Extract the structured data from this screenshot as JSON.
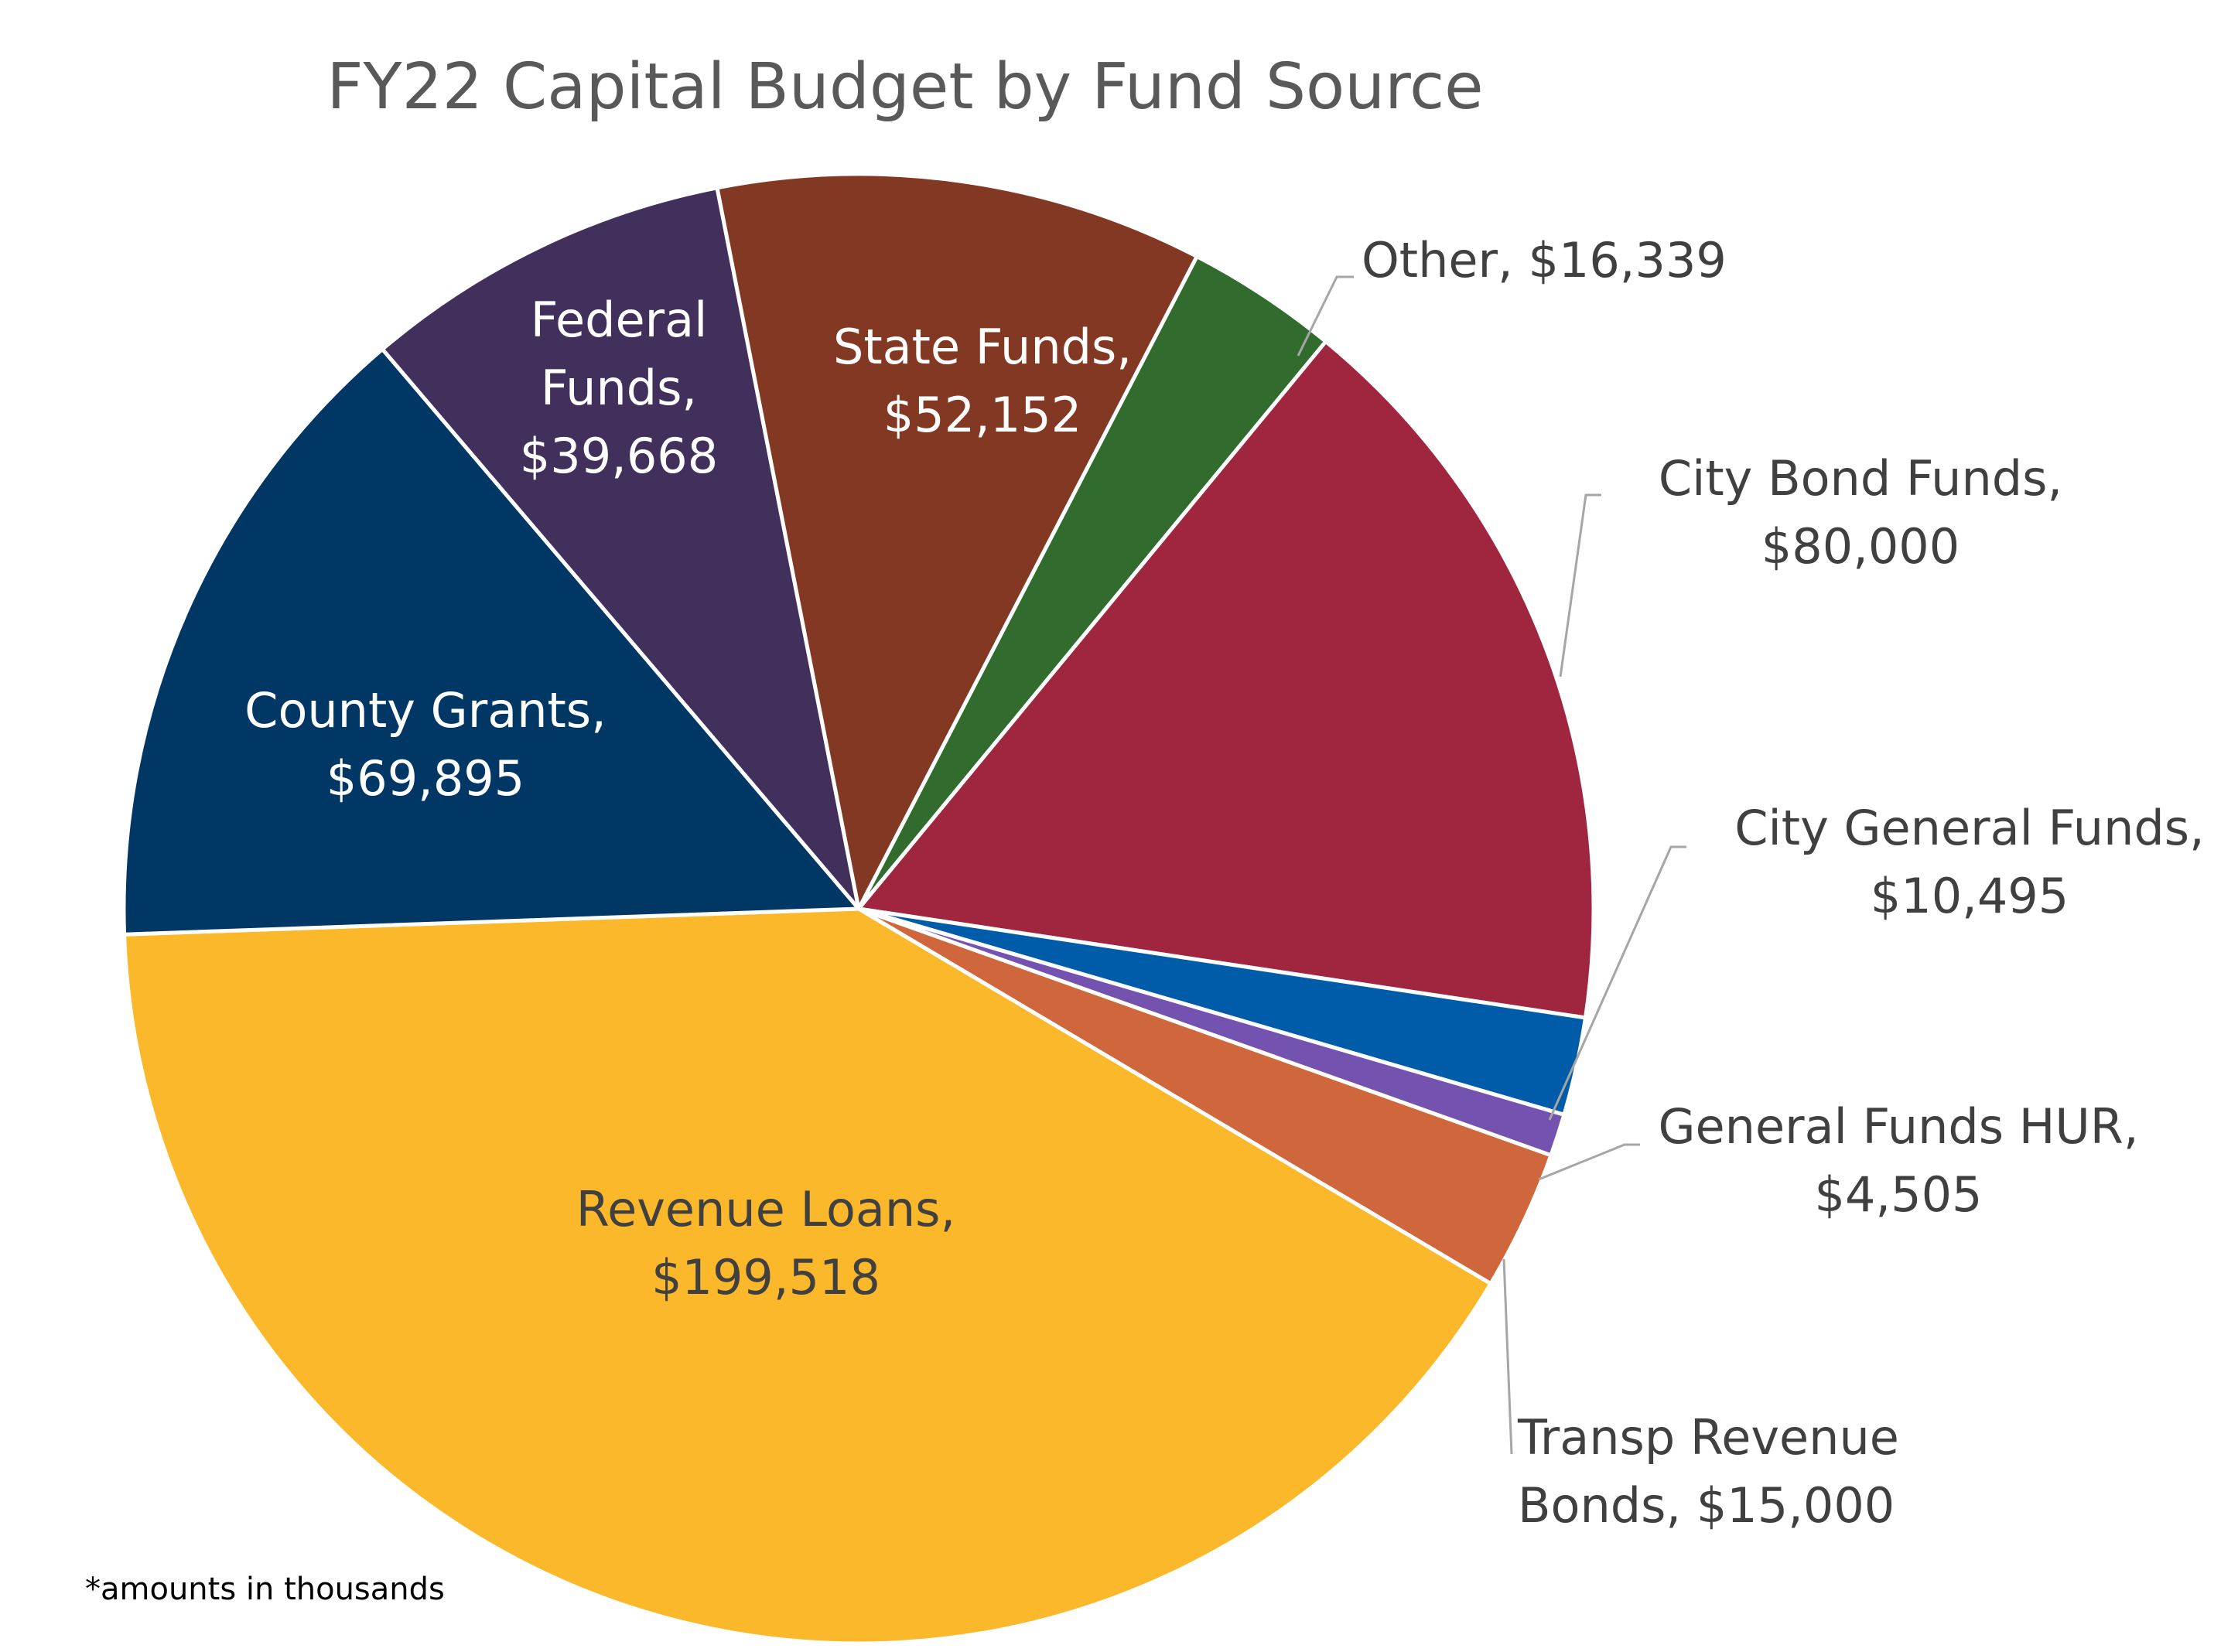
{
  "chart_data": {
    "type": "pie",
    "title": "FY22 Capital Budget by Fund Source",
    "note": "*amounts in thousands",
    "slices": [
      {
        "key": "other",
        "label": "Other,",
        "amount_text": "$16,339",
        "value": 16339,
        "color": "#316b2e",
        "label_style": "outside",
        "leader": true
      },
      {
        "key": "city-bond",
        "label": "City Bond Funds,",
        "amount_text": "$80,000",
        "value": 80000,
        "color": "#a0263f",
        "label_style": "outside",
        "leader": true
      },
      {
        "key": "city-general",
        "label": "City General Funds,",
        "amount_text": "$10,495",
        "value": 10495,
        "color": "#005ba8",
        "label_style": "outside",
        "leader": true
      },
      {
        "key": "general-hur",
        "label": "General Funds HUR,",
        "amount_text": "$4,505",
        "value": 4505,
        "color": "#7452b0",
        "label_style": "outside",
        "leader": true
      },
      {
        "key": "transp-revenue",
        "label": "Transp Revenue Bonds,",
        "amount_text": "$15,000",
        "value": 15000,
        "color": "#d0663b",
        "label_style": "outside",
        "leader": true
      },
      {
        "key": "revenue-loans",
        "label": "Revenue Loans,",
        "amount_text": "$199,518",
        "value": 199518,
        "color": "#fbb82a",
        "label_style": "inside-dark",
        "leader": false
      },
      {
        "key": "county-grants",
        "label": "County Grants,",
        "amount_text": "$69,895",
        "value": 69895,
        "color": "#003764",
        "label_style": "inside",
        "leader": false
      },
      {
        "key": "federal",
        "label": "Federal Funds,",
        "amount_text": "$39,668",
        "value": 39668,
        "color": "#42305c",
        "label_style": "inside",
        "leader": false
      },
      {
        "key": "state",
        "label": "State Funds,",
        "amount_text": "$52,152",
        "value": 52152,
        "color": "#823822",
        "label_style": "inside",
        "leader": false
      }
    ]
  }
}
